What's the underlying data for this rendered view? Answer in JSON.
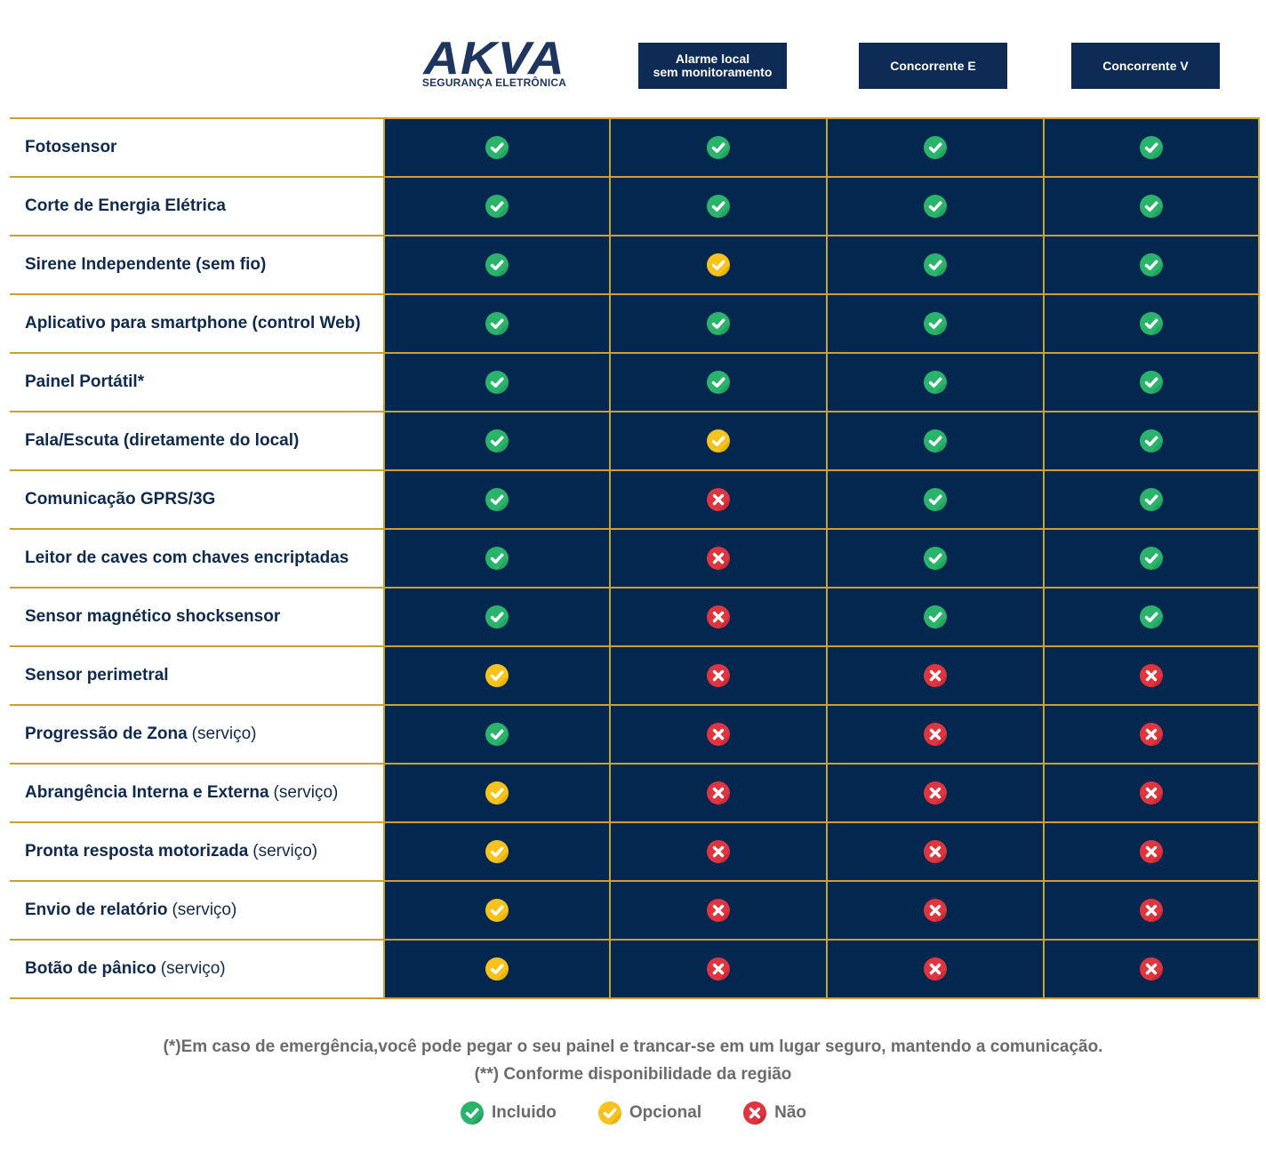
{
  "brand": {
    "logo_text": "AKVA",
    "logo_subtext": "SEGURANÇA ELETRÔNICA",
    "logo_color": "#1e3560"
  },
  "columns": [
    {
      "label_line1": "Alarme local",
      "label_line2": "sem monitoramento"
    },
    {
      "label_line1": "Concorrente E",
      "label_line2": ""
    },
    {
      "label_line1": "Concorrente V",
      "label_line2": ""
    }
  ],
  "colors": {
    "header_bg": "#0d2b55",
    "cell_bg": "#03274f",
    "grid_line": "#c9a031",
    "included": "#2ab36b",
    "optional": "#f7c21b",
    "no": "#e0353e",
    "feature_text": "#0f2a4f",
    "footnote_text": "#6b6b6b"
  },
  "rows": [
    {
      "feature": "Fotosensor",
      "note": "",
      "values": [
        "included",
        "included",
        "included",
        "included"
      ]
    },
    {
      "feature": "Corte de Energia Elétrica",
      "note": "",
      "values": [
        "included",
        "included",
        "included",
        "included"
      ]
    },
    {
      "feature": "Sirene Independente (sem fio)",
      "note": "",
      "values": [
        "included",
        "optional",
        "included",
        "included"
      ]
    },
    {
      "feature": "Aplicativo para smartphone (control Web)",
      "note": "",
      "values": [
        "included",
        "included",
        "included",
        "included"
      ]
    },
    {
      "feature": "Painel Portátil*",
      "note": "",
      "values": [
        "included",
        "included",
        "included",
        "included"
      ]
    },
    {
      "feature": "Fala/Escuta (diretamente do local)",
      "note": "",
      "values": [
        "included",
        "optional",
        "included",
        "included"
      ]
    },
    {
      "feature": "Comunicação GPRS/3G",
      "note": "",
      "values": [
        "included",
        "no",
        "included",
        "included"
      ]
    },
    {
      "feature": "Leitor de caves com chaves encriptadas",
      "note": "",
      "values": [
        "included",
        "no",
        "included",
        "included"
      ]
    },
    {
      "feature": "Sensor magnético shocksensor",
      "note": "",
      "values": [
        "included",
        "no",
        "included",
        "included"
      ]
    },
    {
      "feature": "Sensor perimetral",
      "note": "",
      "values": [
        "optional",
        "no",
        "no",
        "no"
      ]
    },
    {
      "feature": "Progressão de Zona",
      "note": "(serviço)",
      "values": [
        "included",
        "no",
        "no",
        "no"
      ]
    },
    {
      "feature": "Abrangência Interna e Externa",
      "note": "(serviço)",
      "values": [
        "optional",
        "no",
        "no",
        "no"
      ]
    },
    {
      "feature": "Pronta resposta motorizada",
      "note": "(serviço)",
      "values": [
        "optional",
        "no",
        "no",
        "no"
      ]
    },
    {
      "feature": "Envio de relatório",
      "note": "(serviço)",
      "values": [
        "optional",
        "no",
        "no",
        "no"
      ]
    },
    {
      "feature": "Botão de pânico",
      "note": "(serviço)",
      "values": [
        "optional",
        "no",
        "no",
        "no"
      ]
    }
  ],
  "footnotes": {
    "line1": "(*)Em caso de emergência,você pode pegar o seu painel e trancar-se em um lugar seguro, mantendo a comunicação.",
    "line2": "(**) Conforme disponibilidade da região"
  },
  "legend": [
    {
      "status": "included",
      "label": "Incluido"
    },
    {
      "status": "optional",
      "label": "Opcional"
    },
    {
      "status": "no",
      "label": "Não"
    }
  ],
  "icons": {
    "included": "check-icon",
    "optional": "check-icon",
    "no": "x-icon"
  }
}
